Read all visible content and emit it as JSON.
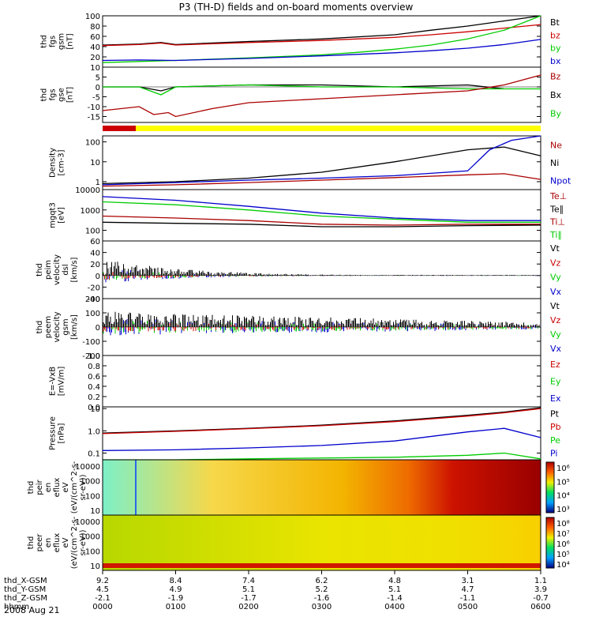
{
  "title": "P3 (TH-D) fields and on-board moments overview",
  "date_label": "2008 Aug 21",
  "colors": {
    "black": "#000000",
    "red": "#cc0000",
    "green": "#00cc00",
    "blue": "#0000cc",
    "yellow": "#ffff00",
    "darkred": "#aa0000"
  },
  "chart_data": [
    {
      "type": "line",
      "ylabel": [
        "thd",
        "fgs",
        "gsm",
        "[nT]"
      ],
      "ylim": [
        0,
        100
      ],
      "yticks": [
        "100",
        "80",
        "60",
        "40",
        "20"
      ],
      "yvals": [
        100,
        80,
        60,
        40,
        20
      ],
      "legend": [
        "Bt",
        "bz",
        "by",
        "bx"
      ],
      "legend_colors": [
        "black",
        "red",
        "green",
        "blue"
      ],
      "series": [
        {
          "name": "Bt",
          "color": "black",
          "x": [
            0,
            0.5,
            0.8,
            1,
            2,
            3,
            4,
            4.5,
            5,
            5.5,
            6
          ],
          "y": [
            43,
            45,
            48,
            44,
            50,
            55,
            63,
            72,
            80,
            90,
            100
          ]
        },
        {
          "name": "bz",
          "color": "red",
          "x": [
            0,
            0.5,
            0.8,
            1,
            2,
            3,
            4,
            4.5,
            5,
            5.5,
            6
          ],
          "y": [
            42,
            44,
            47,
            43,
            48,
            52,
            58,
            63,
            69,
            76,
            83
          ]
        },
        {
          "name": "by",
          "color": "green",
          "x": [
            0,
            0.5,
            1,
            2,
            3,
            3.5,
            4,
            4.5,
            5,
            5.5,
            6
          ],
          "y": [
            9,
            11,
            13,
            18,
            24,
            29,
            35,
            43,
            55,
            72,
            100
          ]
        },
        {
          "name": "bx",
          "color": "blue",
          "x": [
            0,
            0.5,
            1,
            2,
            3,
            4,
            4.5,
            5,
            5.5,
            6
          ],
          "y": [
            13,
            14,
            13,
            17,
            22,
            28,
            32,
            37,
            44,
            54
          ]
        }
      ]
    },
    {
      "type": "line",
      "ylabel": [
        "thd",
        "fgs",
        "gse",
        "[nT]"
      ],
      "ylim": [
        -18,
        10
      ],
      "yticks": [
        "10",
        "5",
        "0",
        "-5",
        "-10",
        "-15"
      ],
      "yvals": [
        10,
        5,
        0,
        -5,
        -10,
        -15
      ],
      "legend": [
        "Bz",
        "Bx",
        "By"
      ],
      "legend_colors": [
        "darkred",
        "black",
        "green"
      ],
      "series": [
        {
          "name": "Bx",
          "color": "black",
          "x": [
            0,
            0.5,
            0.8,
            1,
            2,
            3,
            4,
            5,
            5.5
          ],
          "y": [
            0,
            0,
            -2,
            0,
            1,
            1,
            0,
            1,
            -1
          ]
        },
        {
          "name": "By",
          "color": "green",
          "x": [
            0,
            0.5,
            0.8,
            1,
            2,
            3,
            4,
            5,
            6
          ],
          "y": [
            0,
            0,
            -4,
            0,
            1,
            0,
            0,
            -1,
            -1
          ]
        },
        {
          "name": "Bz",
          "color": "darkred",
          "x": [
            0,
            0.5,
            0.7,
            0.9,
            1,
            1.5,
            2,
            3,
            4,
            5,
            5.5,
            6
          ],
          "y": [
            -12,
            -10,
            -14,
            -13,
            -15,
            -11,
            -8,
            -6,
            -4,
            -2,
            1,
            6
          ]
        }
      ]
    },
    {
      "type": "line",
      "ylabel": [
        "Density",
        "[cm-3]"
      ],
      "ylog": true,
      "ylim": [
        0.4,
        200
      ],
      "yticks": [
        "100",
        "10",
        "1"
      ],
      "yvals": [
        100,
        10,
        1
      ],
      "legend": [
        "Ne",
        "Ni",
        "Npot"
      ],
      "legend_colors": [
        "darkred",
        "black",
        "blue"
      ],
      "series": [
        {
          "name": "Ni",
          "color": "black",
          "x": [
            0,
            1,
            2,
            3,
            4,
            5,
            5.5,
            6
          ],
          "y": [
            0.8,
            1,
            1.5,
            3,
            10,
            40,
            55,
            20
          ]
        },
        {
          "name": "Ne",
          "color": "darkred",
          "x": [
            0,
            1,
            2,
            3,
            4,
            5,
            5.5,
            6
          ],
          "y": [
            0.6,
            0.7,
            0.9,
            1.2,
            1.6,
            2.2,
            2.5,
            1.3
          ]
        },
        {
          "name": "Npot",
          "color": "blue",
          "x": [
            0,
            1,
            2,
            3,
            4,
            5,
            5.3,
            5.6,
            6
          ],
          "y": [
            0.7,
            0.9,
            1.2,
            1.5,
            2,
            3.5,
            40,
            120,
            200
          ]
        }
      ]
    },
    {
      "type": "line",
      "ylabel": [
        "mgqt3",
        "[eV]"
      ],
      "ylog": true,
      "ylim": [
        30,
        10000
      ],
      "yticks": [
        "10000",
        "1000",
        "100"
      ],
      "yvals": [
        10000,
        1000,
        100
      ],
      "legend": [
        "Te⊥",
        "Te∥",
        "Ti⊥",
        "Ti∥"
      ],
      "legend_colors": [
        "darkred",
        "black",
        "darkred",
        "green"
      ],
      "series": [
        {
          "name": "Ti⊥",
          "color": "blue",
          "x": [
            0,
            1,
            2,
            3,
            4,
            5,
            6
          ],
          "y": [
            4500,
            3000,
            1500,
            700,
            400,
            300,
            300
          ]
        },
        {
          "name": "Ti∥",
          "color": "green",
          "x": [
            0,
            1,
            2,
            3,
            4,
            5,
            6
          ],
          "y": [
            2500,
            1800,
            1000,
            500,
            350,
            250,
            250
          ]
        },
        {
          "name": "Te⊥",
          "color": "darkred",
          "x": [
            0,
            1,
            2,
            3,
            4,
            5,
            6
          ],
          "y": [
            500,
            400,
            300,
            200,
            180,
            200,
            200
          ]
        },
        {
          "name": "Te∥",
          "color": "black",
          "x": [
            0,
            1,
            2,
            3,
            4,
            5,
            6
          ],
          "y": [
            250,
            220,
            200,
            150,
            150,
            170,
            180
          ]
        }
      ]
    },
    {
      "type": "line",
      "ylabel": [
        "thd",
        "peim",
        "velocity",
        "dsl",
        "[km/s]"
      ],
      "ylim": [
        -40,
        60
      ],
      "yticks": [
        "60",
        "40",
        "20",
        "0",
        "-20",
        "-40"
      ],
      "yvals": [
        60,
        40,
        20,
        0,
        -20,
        -40
      ],
      "legend": [
        "Vt",
        "Vz",
        "Vy",
        "Vx"
      ],
      "legend_colors": [
        "black",
        "red",
        "green",
        "blue"
      ],
      "series": [
        {
          "name": "Vt",
          "color": "black",
          "x": [
            0,
            0.5,
            1,
            2,
            3,
            4,
            5,
            6
          ],
          "y": [
            20,
            30,
            15,
            8,
            4,
            2,
            1,
            1
          ]
        }
      ]
    },
    {
      "type": "line",
      "ylabel": [
        "thd",
        "peem",
        "velocity",
        "gsm",
        "[km/s]"
      ],
      "ylim": [
        -200,
        200
      ],
      "yticks": [
        "200",
        "100",
        "0",
        "-100",
        "-200"
      ],
      "yvals": [
        200,
        100,
        0,
        -100,
        -200
      ],
      "legend": [
        "Vt",
        "Vz",
        "Vy",
        "Vx"
      ],
      "legend_colors": [
        "black",
        "red",
        "green",
        "blue"
      ],
      "series": [
        {
          "name": "Vt",
          "color": "black",
          "x": [
            0,
            0.5,
            1,
            2,
            3,
            4,
            5,
            6
          ],
          "y": [
            60,
            80,
            50,
            40,
            30,
            25,
            20,
            20
          ]
        }
      ]
    },
    {
      "type": "line",
      "ylabel": [
        "E=-VxB",
        "[mV/m]"
      ],
      "ylim": [
        0,
        1
      ],
      "yticks": [
        "1.0",
        "0.8",
        "0.6",
        "0.4",
        "0.2",
        "0.0"
      ],
      "yvals": [
        1,
        0.8,
        0.6,
        0.4,
        0.2,
        0
      ],
      "legend": [
        "Ez",
        "Ey",
        "Ex"
      ],
      "legend_colors": [
        "red",
        "green",
        "blue"
      ],
      "series": []
    },
    {
      "type": "line",
      "ylabel": [
        "Pressure",
        "[nPa]"
      ],
      "ylog": true,
      "ylim": [
        0.05,
        12
      ],
      "yticks": [
        "10",
        "1.0",
        "0.1"
      ],
      "yvals": [
        10,
        1,
        0.1
      ],
      "legend": [
        "Pt",
        "Pb",
        "Pe",
        "Pi"
      ],
      "legend_colors": [
        "black",
        "red",
        "green",
        "blue"
      ],
      "series": [
        {
          "name": "Pt",
          "color": "black",
          "x": [
            0,
            1,
            2,
            3,
            4,
            5,
            5.5,
            6
          ],
          "y": [
            0.8,
            1.0,
            1.3,
            1.8,
            2.8,
            5,
            7,
            11
          ]
        },
        {
          "name": "Pb",
          "color": "red",
          "x": [
            0,
            1,
            2,
            3,
            4,
            5,
            5.5,
            6
          ],
          "y": [
            0.75,
            0.95,
            1.25,
            1.7,
            2.6,
            4.6,
            6.5,
            10
          ]
        },
        {
          "name": "Pi",
          "color": "blue",
          "x": [
            0,
            1,
            2,
            3,
            4,
            5,
            5.5,
            6
          ],
          "y": [
            0.13,
            0.14,
            0.17,
            0.22,
            0.35,
            0.9,
            1.3,
            0.5
          ]
        },
        {
          "name": "Pe",
          "color": "green",
          "x": [
            0,
            1,
            2,
            3,
            4,
            5,
            5.5,
            6
          ],
          "y": [
            0.05,
            0.05,
            0.055,
            0.06,
            0.065,
            0.08,
            0.1,
            0.055
          ]
        }
      ]
    },
    {
      "type": "heatmap",
      "ylabel": [
        "thd",
        "peir",
        "en",
        "eflux",
        "eV",
        "(eV/(cm^2-s-",
        "sr-eV))"
      ],
      "yticks": [
        "10000",
        "1000",
        "100",
        "10"
      ],
      "colorbar_labels": [
        "10⁶",
        "10⁵",
        "10⁴",
        "10³"
      ]
    },
    {
      "type": "heatmap",
      "ylabel": [
        "thd",
        "peer",
        "en",
        "eflux",
        "eV",
        "(eV/(cm^2-s-",
        "sr-eV))"
      ],
      "yticks": [
        "10000",
        "1000",
        "100",
        "10"
      ],
      "colorbar_labels": [
        "10⁸",
        "10⁷",
        "10⁶",
        "10⁵",
        "10⁴"
      ]
    }
  ],
  "x_axis": {
    "rows": [
      {
        "label": "thd_X-GSM",
        "values": [
          "9.2",
          "8.4",
          "7.4",
          "6.2",
          "4.8",
          "3.1",
          "1.1"
        ]
      },
      {
        "label": "thd_Y-GSM",
        "values": [
          "4.5",
          "4.9",
          "5.1",
          "5.2",
          "5.1",
          "4.7",
          "3.9"
        ]
      },
      {
        "label": "thd_Z-GSM",
        "values": [
          "-2.1",
          "-1.9",
          "-1.7",
          "-1.6",
          "-1.4",
          "-1.1",
          "-0.7"
        ]
      },
      {
        "label": "hhmm",
        "values": [
          "0000",
          "0100",
          "0200",
          "0300",
          "0400",
          "0500",
          "0600"
        ]
      }
    ]
  }
}
